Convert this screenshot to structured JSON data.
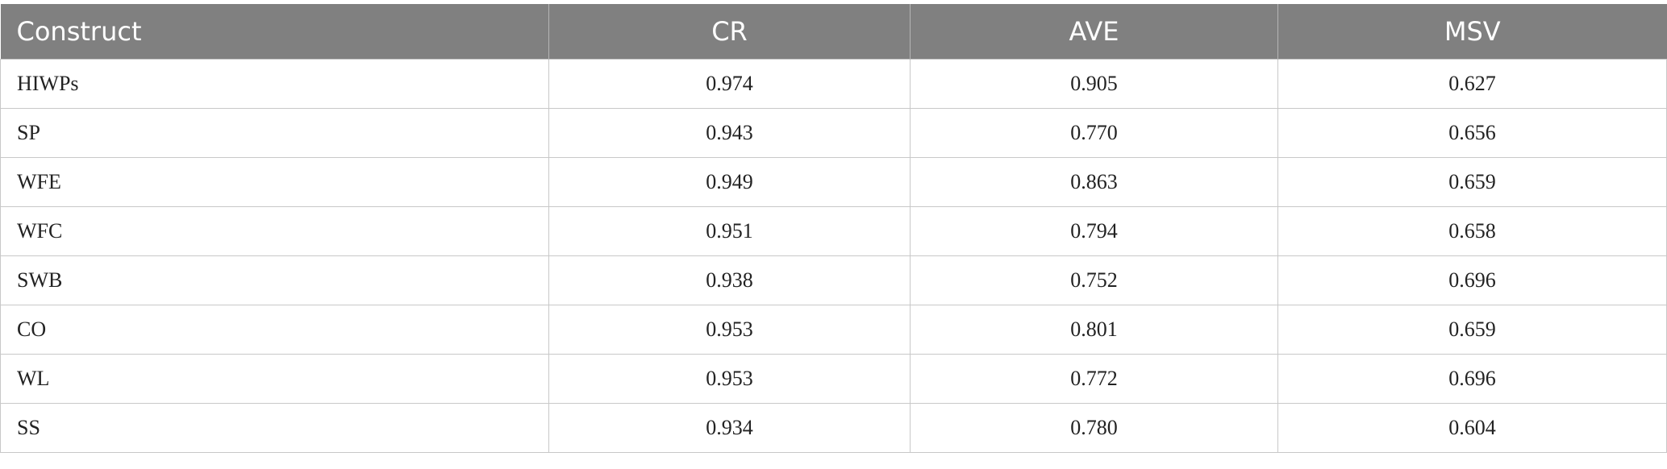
{
  "table": {
    "header": [
      "Construct",
      "CR",
      "AVE",
      "MSV"
    ],
    "rows": [
      [
        "HIWPs",
        "0.974",
        "0.905",
        "0.627"
      ],
      [
        "SP",
        "0.943",
        "0.770",
        "0.656"
      ],
      [
        "WFE",
        "0.949",
        "0.863",
        "0.659"
      ],
      [
        "WFC",
        "0.951",
        "0.794",
        "0.658"
      ],
      [
        "SWB",
        "0.938",
        "0.752",
        "0.696"
      ],
      [
        "CO",
        "0.953",
        "0.801",
        "0.659"
      ],
      [
        "WL",
        "0.953",
        "0.772",
        "0.696"
      ],
      [
        "SS",
        "0.934",
        "0.780",
        "0.604"
      ]
    ]
  }
}
